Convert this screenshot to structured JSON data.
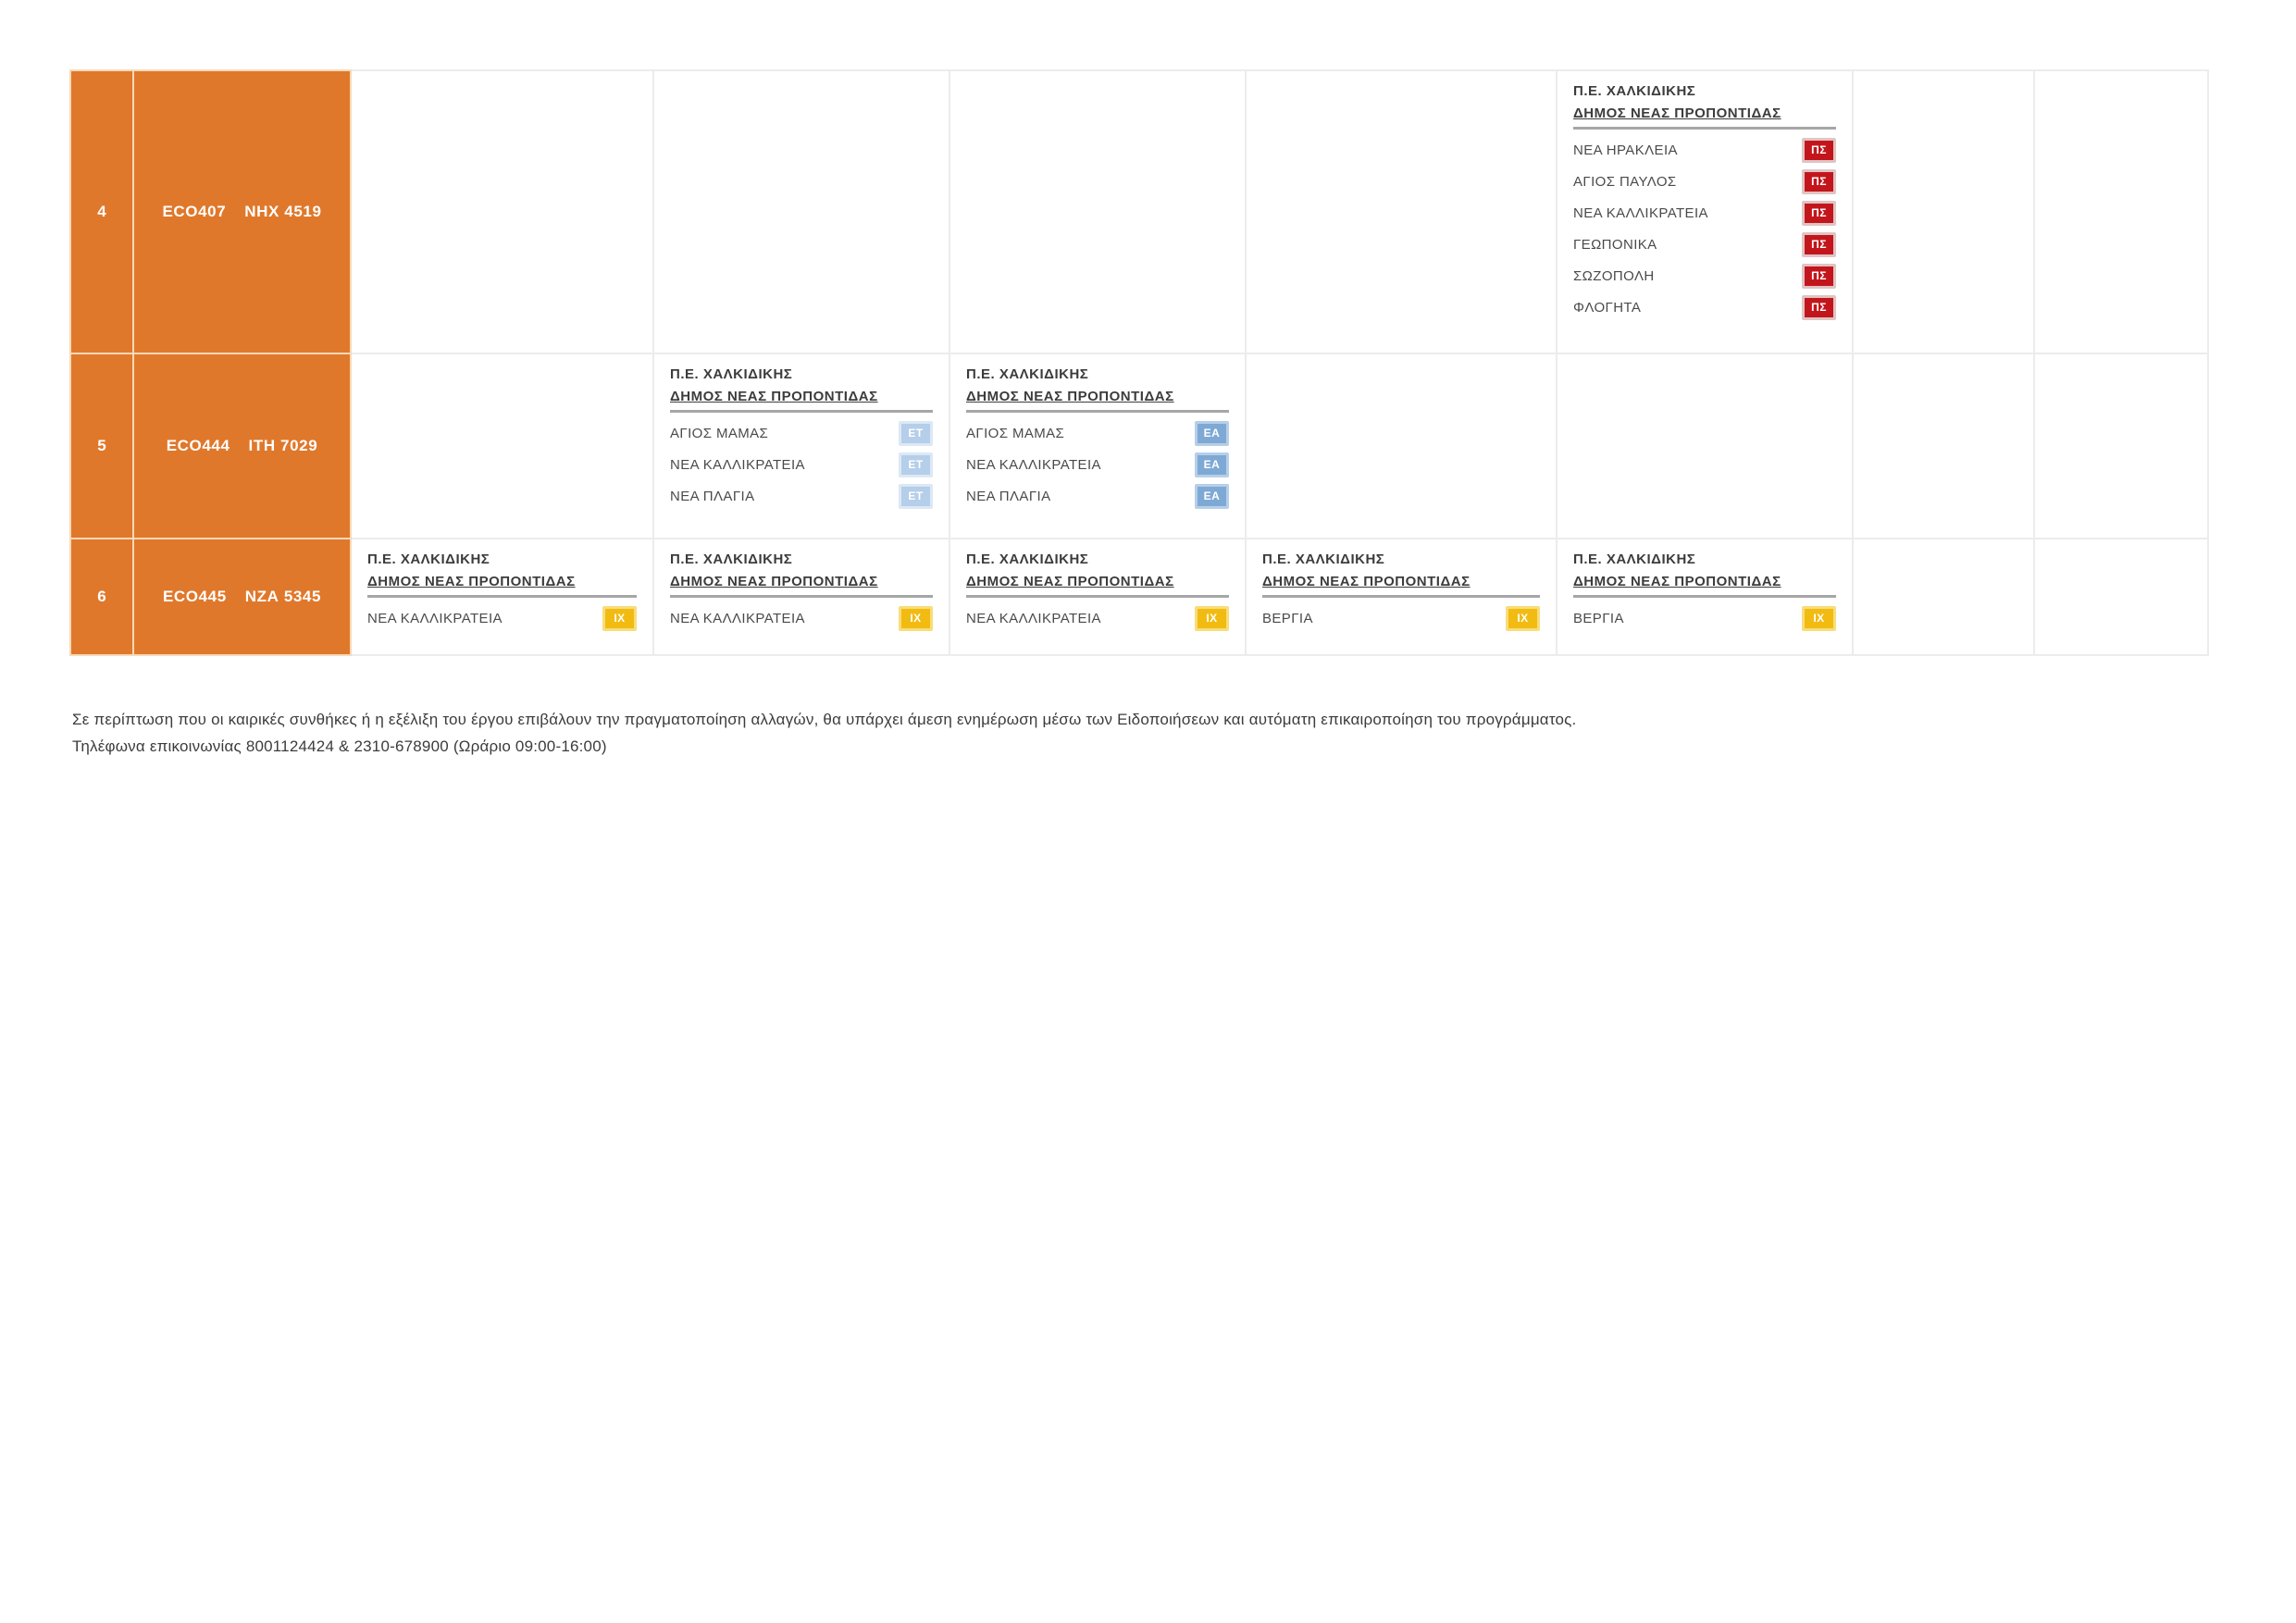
{
  "colors": {
    "row_orange": "#e0782b",
    "orange_cell_border": "#f8d9b8",
    "grid_border": "#ececec",
    "header_rule_gray": "#a6a6a6",
    "text_dark": "#3c3c3c"
  },
  "badges": {
    "PS": {
      "label": "ΠΣ",
      "bg": "#c3161c",
      "border": "#e0c4c4"
    },
    "ET": {
      "label": "ΕΤ",
      "bg": "#b5cee9",
      "border": "#dce8f5"
    },
    "EA": {
      "label": "ΕΑ",
      "bg": "#7fa9d5",
      "border": "#b6cfe8"
    },
    "IX": {
      "label": "ΙΧ",
      "bg": "#f1bb12",
      "border": "#f8dd7a"
    }
  },
  "table": {
    "region_label": "Π.Ε. ΧΑΛΚΙΔΙΚΗΣ",
    "municipality_label": "ΔΗΜΟΣ ΝΕΑΣ ΠΡΟΠΟΝΤΙΔΑΣ",
    "rows": [
      {
        "num": "4",
        "crew": "ECO407",
        "plate": "ΝΗΧ 4519",
        "cells": [
          null,
          null,
          null,
          null,
          {
            "areas": [
              [
                "ΝΕΑ ΗΡΑΚΛΕΙΑ",
                "PS"
              ],
              [
                "ΑΓΙΟΣ ΠΑΥΛΟΣ",
                "PS"
              ],
              [
                "ΝΕΑ ΚΑΛΛΙΚΡΑΤΕΙΑ",
                "PS"
              ],
              [
                "ΓΕΩΠΟΝΙΚΑ",
                "PS"
              ],
              [
                "ΣΩΖΟΠΟΛΗ",
                "PS"
              ],
              [
                "ΦΛΟΓΗΤΑ",
                "PS"
              ]
            ]
          },
          null,
          null
        ]
      },
      {
        "num": "5",
        "crew": "ECO444",
        "plate": "ΙΤΗ 7029",
        "cells": [
          null,
          {
            "areas": [
              [
                "ΑΓΙΟΣ ΜΑΜΑΣ",
                "ET"
              ],
              [
                "ΝΕΑ ΚΑΛΛΙΚΡΑΤΕΙΑ",
                "ET"
              ],
              [
                "ΝΕΑ ΠΛΑΓΙΑ",
                "ET"
              ]
            ]
          },
          {
            "areas": [
              [
                "ΑΓΙΟΣ ΜΑΜΑΣ",
                "EA"
              ],
              [
                "ΝΕΑ ΚΑΛΛΙΚΡΑΤΕΙΑ",
                "EA"
              ],
              [
                "ΝΕΑ ΠΛΑΓΙΑ",
                "EA"
              ]
            ]
          },
          null,
          null,
          null,
          null
        ]
      },
      {
        "num": "6",
        "crew": "ECO445",
        "plate": "ΝΖΑ 5345",
        "cells": [
          {
            "areas": [
              [
                "ΝΕΑ ΚΑΛΛΙΚΡΑΤΕΙΑ",
                "IX"
              ]
            ]
          },
          {
            "areas": [
              [
                "ΝΕΑ ΚΑΛΛΙΚΡΑΤΕΙΑ",
                "IX"
              ]
            ]
          },
          {
            "areas": [
              [
                "ΝΕΑ ΚΑΛΛΙΚΡΑΤΕΙΑ",
                "IX"
              ]
            ]
          },
          {
            "areas": [
              [
                "ΒΕΡΓΙΑ",
                "IX"
              ]
            ]
          },
          {
            "areas": [
              [
                "ΒΕΡΓΙΑ",
                "IX"
              ]
            ]
          },
          null,
          null
        ]
      }
    ]
  },
  "footer": {
    "line1": "Σε περίπτωση που οι καιρικές συνθήκες ή η εξέλιξη του έργου επιβάλουν την πραγματοποίηση αλλαγών, θα υπάρχει άμεση ενημέρωση μέσω των Ειδοποιήσεων και αυτόματη επικαιροποίηση του προγράμματος.",
    "line2": "Τηλέφωνα επικοινωνίας 8001124424 & 2310-678900 (Ωράριο 09:00-16:00)"
  }
}
